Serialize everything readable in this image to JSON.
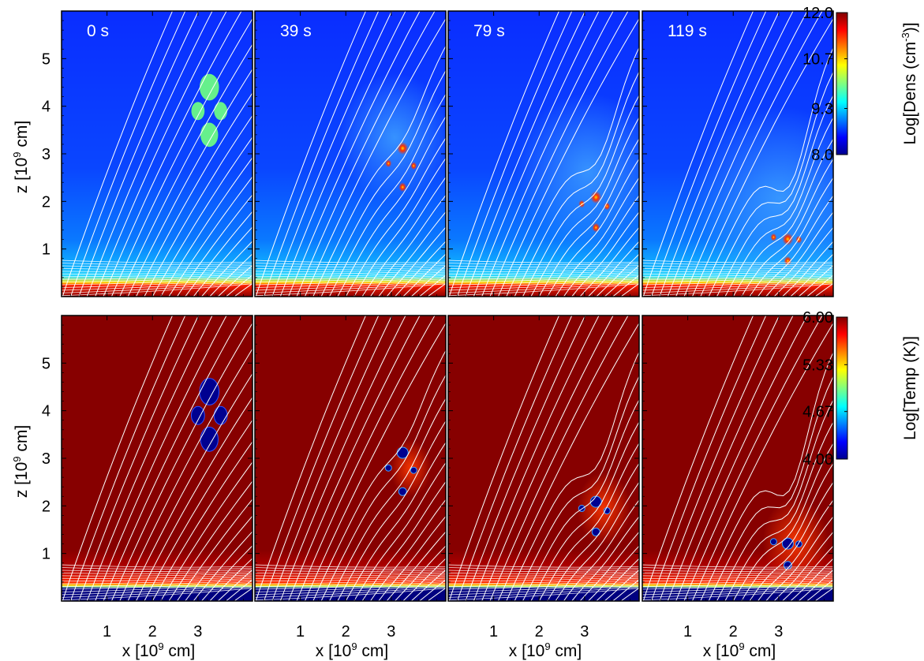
{
  "chart_data": {
    "type": "heatmap",
    "figure_title": "",
    "times": [
      "0 s",
      "39 s",
      "79 s",
      "119 s"
    ],
    "x_axis": {
      "label_prefix": "x [10",
      "label_exp": "9",
      "label_suffix": " cm]",
      "range": [
        0,
        4.2
      ],
      "ticks": [
        1,
        2,
        3
      ],
      "tick_labels": [
        "1",
        "2",
        "3"
      ]
    },
    "z_axis": {
      "label_prefix": "z [10",
      "label_exp": "9",
      "label_suffix": " cm]",
      "range": [
        0,
        6.0
      ],
      "ticks": [
        1,
        2,
        3,
        4,
        5
      ],
      "tick_labels": [
        "1",
        "2",
        "3",
        "4",
        "5"
      ]
    },
    "rows": [
      {
        "quantity": "density",
        "colorbar_label_prefix": "Log[Dens (cm",
        "colorbar_label_exp": "-3",
        "colorbar_label_suffix": ")]",
        "colorbar_range": [
          8.0,
          12.0
        ],
        "colorbar_ticks": [
          8.0,
          9.3,
          10.7,
          12.0
        ],
        "colorbar_tick_labels": [
          "8.0",
          "9.3",
          "10.7",
          "12.0"
        ],
        "colormap": "jet"
      },
      {
        "quantity": "temperature",
        "colorbar_label_prefix": "Log[Temp (K)]",
        "colorbar_label_exp": "",
        "colorbar_label_suffix": "",
        "colorbar_range": [
          4.0,
          6.0
        ],
        "colorbar_ticks": [
          4.0,
          4.67,
          5.33,
          6.0
        ],
        "colorbar_tick_labels": [
          "4.00",
          "4.67",
          "5.33",
          "6.00"
        ],
        "colormap": "jet"
      }
    ],
    "chromosphere_top_z": 0.62,
    "initial_blobs": [
      {
        "x": 3.25,
        "z": 4.4,
        "r": 0.22
      },
      {
        "x": 3.0,
        "z": 3.9,
        "r": 0.15
      },
      {
        "x": 3.5,
        "z": 3.9,
        "r": 0.15
      },
      {
        "x": 3.25,
        "z": 3.4,
        "r": 0.2
      }
    ],
    "condensation_fronts": [
      {
        "time": "0 s",
        "x": 3.25,
        "z": 3.4
      },
      {
        "time": "39 s",
        "x": 3.25,
        "z": 2.3
      },
      {
        "time": "79 s",
        "x": 3.25,
        "z": 1.45
      },
      {
        "time": "119 s",
        "x": 3.2,
        "z": 0.75
      }
    ],
    "grid": false,
    "legend": "none",
    "colors": {
      "background_density": "#0032ff",
      "background_temperature": "#8c0000",
      "chromosphere_density": "#8c0000",
      "chromosphere_temperature": "#000080",
      "blob_density": "#66f08c",
      "blob_temperature": "#000090",
      "field_lines": "#ffffff"
    }
  }
}
